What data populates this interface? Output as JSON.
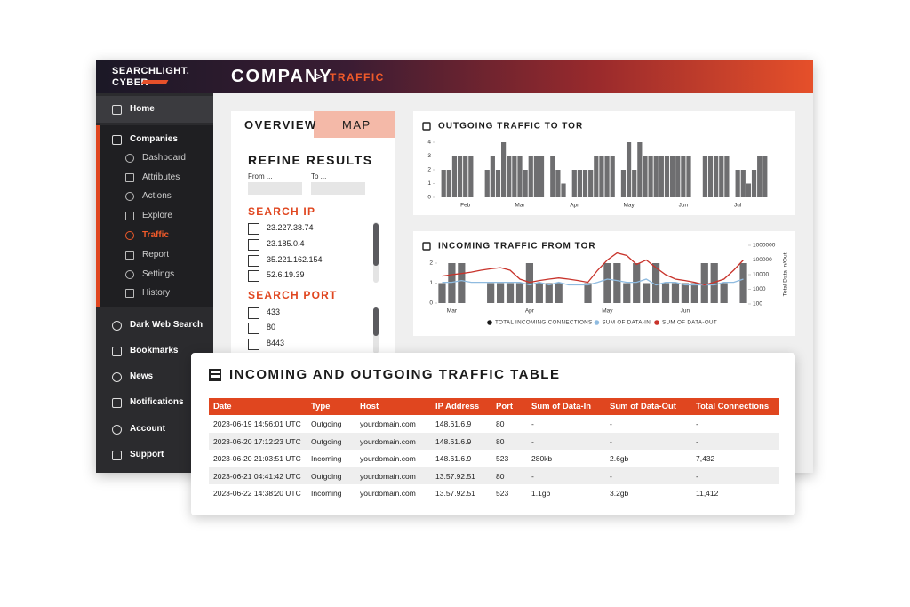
{
  "header": {
    "logo_line1": "SEARCHLIGHT.",
    "logo_line2": "CYBER",
    "title": "COMPANY",
    "separator": ">",
    "subtitle": "TRAFFIC"
  },
  "sidebar": {
    "top": [
      "Home"
    ],
    "section": "Companies",
    "sub": [
      "Dashboard",
      "Attributes",
      "Actions",
      "Explore",
      "Traffic",
      "Report",
      "Settings",
      "History"
    ],
    "bottom": [
      "Dark Web Search",
      "Bookmarks",
      "News",
      "Notifications",
      "Account",
      "Support"
    ]
  },
  "filters": {
    "tabs": [
      "OVERVIEW",
      "MAP"
    ],
    "title": "REFINE RESULTS",
    "from": "From ...",
    "to": "To ...",
    "ip_heading": "SEARCH IP",
    "ips": [
      "23.227.38.74",
      "23.185.0.4",
      "35.221.162.154",
      "52.6.19.39"
    ],
    "port_heading": "SEARCH PORT",
    "ports": [
      "433",
      "80",
      "8443"
    ]
  },
  "chart_data": [
    {
      "type": "bar",
      "title": "OUTGOING TRAFFIC TO TOR",
      "color": "#6e6e70",
      "categories": [
        null,
        null,
        null,
        null,
        null,
        "Feb",
        null,
        null,
        null,
        null,
        null,
        null,
        null,
        null,
        null,
        "Mar",
        null,
        null,
        null,
        null,
        null,
        null,
        null,
        null,
        null,
        "Apr",
        null,
        null,
        null,
        null,
        null,
        null,
        null,
        null,
        null,
        "May",
        null,
        null,
        null,
        null,
        null,
        null,
        null,
        null,
        null,
        "Jun",
        null,
        null,
        null,
        null,
        null,
        null,
        null,
        null,
        null,
        "Jul",
        null,
        null,
        null,
        null,
        null,
        null
      ],
      "values": [
        0,
        2,
        2,
        3,
        3,
        3,
        3,
        0,
        0,
        2,
        3,
        2,
        4,
        3,
        3,
        3,
        2,
        3,
        3,
        3,
        0,
        3,
        2,
        1,
        0,
        2,
        2,
        2,
        2,
        3,
        3,
        3,
        3,
        0,
        2,
        4,
        2,
        4,
        3,
        3,
        3,
        3,
        3,
        3,
        3,
        3,
        3,
        0,
        0,
        3,
        3,
        3,
        3,
        3,
        0,
        2,
        2,
        1,
        2,
        3,
        3,
        0
      ],
      "ylim": [
        0,
        4
      ],
      "yticks": [
        0,
        1,
        2,
        3,
        4
      ]
    },
    {
      "type": "bar-line",
      "title": "INCOMING TRAFFIC FROM TOR",
      "categories": [
        null,
        "Mar",
        null,
        null,
        null,
        null,
        null,
        null,
        null,
        "Apr",
        null,
        null,
        null,
        null,
        null,
        null,
        null,
        "May",
        null,
        null,
        null,
        null,
        null,
        null,
        null,
        "Jun",
        null,
        null,
        null,
        null,
        null,
        null
      ],
      "series": [
        {
          "name": "TOTAL INCOMING CONNECTIONS",
          "color": "#6e6e70",
          "legend_color": "#1a1a1a",
          "values": [
            1,
            2,
            2,
            0,
            0,
            1,
            1,
            1,
            1,
            2,
            1,
            1,
            1,
            0,
            0,
            1,
            0,
            2,
            2,
            1,
            2,
            1,
            2,
            1,
            1,
            1,
            1,
            2,
            2,
            1,
            0,
            2
          ]
        },
        {
          "name": "SUM OF DATA-IN",
          "color": "#8fbbe0",
          "axis": "y2",
          "values": [
            3000,
            3000,
            4000,
            3000,
            3000,
            3000,
            3000,
            3000,
            3000,
            2000,
            3000,
            2000,
            3000,
            2000,
            2000,
            2000,
            3000,
            5000,
            4000,
            3000,
            3000,
            5000,
            2000,
            3000,
            3000,
            2000,
            2000,
            2000,
            2000,
            3000,
            3000,
            5000
          ]
        },
        {
          "name": "SUM OF DATA-OUT",
          "color": "#c8332b",
          "axis": "y2",
          "values": [
            8000,
            10000,
            12000,
            15000,
            20000,
            25000,
            30000,
            20000,
            5000,
            3000,
            4000,
            5000,
            6000,
            5000,
            4000,
            3000,
            20000,
            100000,
            300000,
            200000,
            50000,
            100000,
            30000,
            10000,
            5000,
            4000,
            3000,
            2000,
            3000,
            5000,
            20000,
            100000
          ]
        }
      ],
      "ylim": [
        0,
        2
      ],
      "yticks": [
        0,
        1,
        2
      ],
      "y2lim": [
        100,
        1000000
      ],
      "y2ticks": [
        100,
        1000,
        10000,
        100000,
        1000000
      ],
      "y2scale": "log",
      "y2label": "Total Data In/Out"
    }
  ],
  "table": {
    "title": "INCOMING AND OUTGOING TRAFFIC TABLE",
    "columns": [
      "Date",
      "Type",
      "Host",
      "IP Address",
      "Port",
      "Sum of Data-In",
      "Sum of Data-Out",
      "Total Connections"
    ],
    "rows": [
      [
        "2023-06-19 14:56:01 UTC",
        "Outgoing",
        "yourdomain.com",
        "148.61.6.9",
        "80",
        "-",
        "-",
        "-"
      ],
      [
        "2023-06-20 17:12:23 UTC",
        "Outgoing",
        "yourdomain.com",
        "148.61.6.9",
        "80",
        "-",
        "-",
        "-"
      ],
      [
        "2023-06-20 21:03:51 UTC",
        "Incoming",
        "yourdomain.com",
        "148.61.6.9",
        "523",
        "280kb",
        "2.6gb",
        "7,432"
      ],
      [
        "2023-06-21 04:41:42 UTC",
        "Outgoing",
        "yourdomain.com",
        "13.57.92.51",
        "80",
        "-",
        "-",
        "-"
      ],
      [
        "2023-06-22 14:38:20 UTC",
        "Incoming",
        "yourdomain.com",
        "13.57.92.51",
        "523",
        "1.1gb",
        "3.2gb",
        "11,412"
      ]
    ]
  }
}
